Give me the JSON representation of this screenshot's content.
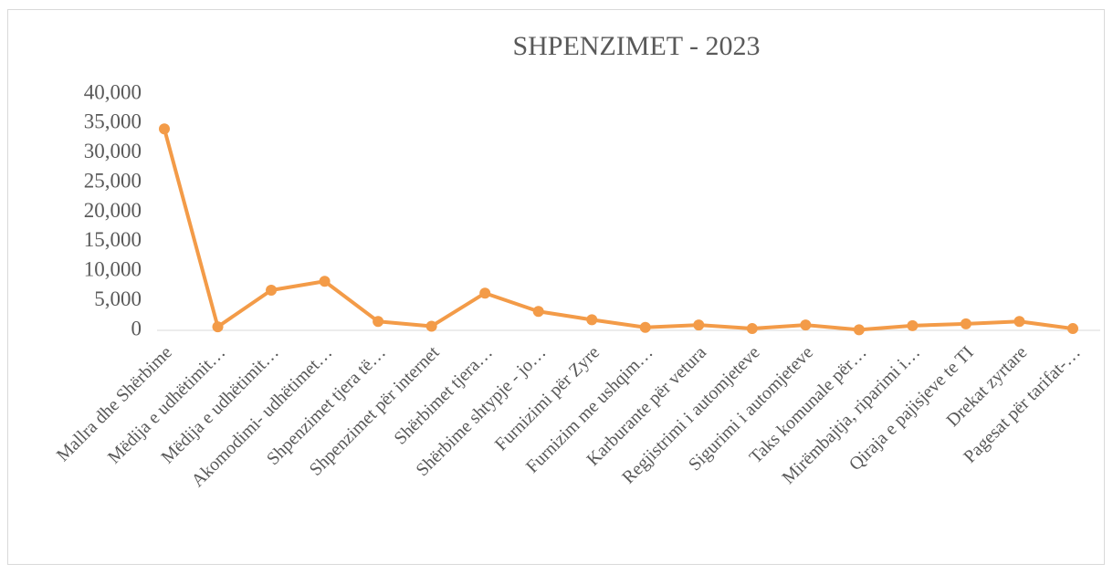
{
  "chart_data": {
    "type": "line",
    "title": "SHPENZIMET - 2023",
    "categories": [
      "Mallra dhe Shërbime",
      "Mëdija e udhëtimit…",
      "Mëdija e udhëtimit…",
      "Akomodimi- udhëtimet…",
      "Shpenzimet tjera të…",
      "Shpenzimet për internet",
      "Shërbimet tjera…",
      "Shërbime shtypje - jo…",
      "Furnizimi për Zyre",
      "Furnizim me ushqim…",
      "Karburante për vetura",
      "Regjistrimi  i automjeteve",
      "Sigurimi i automjeteve",
      "Taks komunale për…",
      "Mirëmbajtja, riparimi i…",
      "Qiraja e pajisjeve te TI",
      "Drekat zyrtare",
      "Pagesat për tarifat-…"
    ],
    "series": [
      {
        "name": "SHPENZIMET - 2023",
        "color": "#f39b48",
        "values": [
          34100,
          600,
          6800,
          8300,
          1500,
          700,
          6300,
          3200,
          1800,
          500,
          900,
          300,
          900,
          100,
          800,
          1100,
          1500,
          300
        ]
      }
    ],
    "ylim": [
      0,
      40000
    ],
    "yticks": [
      0,
      {
        "value": 5000,
        "label": "5,000"
      },
      {
        "value": 10000,
        "label": "10,000"
      },
      {
        "value": 15000,
        "label": "15,000"
      },
      {
        "value": 20000,
        "label": "20,000"
      },
      {
        "value": 25000,
        "label": "25,000"
      },
      {
        "value": 30000,
        "label": "30,000"
      },
      {
        "value": 35000,
        "label": "35,000"
      },
      {
        "value": 40000,
        "label": "40,000"
      }
    ],
    "grid": false
  }
}
